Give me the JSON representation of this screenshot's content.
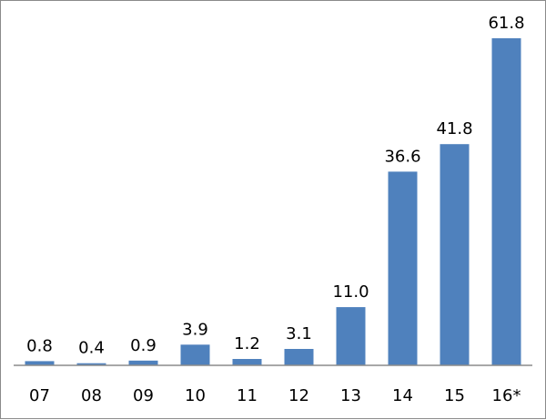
{
  "chart_data": {
    "type": "bar",
    "categories": [
      "07",
      "08",
      "09",
      "10",
      "11",
      "12",
      "13",
      "14",
      "15",
      "16*"
    ],
    "values": [
      0.8,
      0.4,
      0.9,
      3.9,
      1.2,
      3.1,
      11.0,
      36.6,
      41.8,
      61.8
    ],
    "value_labels": [
      "0.8",
      "0.4",
      "0.9",
      "3.9",
      "1.2",
      "3.1",
      "11.0",
      "36.6",
      "41.8",
      "61.8"
    ],
    "title": "",
    "xlabel": "",
    "ylabel": "",
    "ylim": [
      0,
      61.8
    ],
    "grid": false,
    "legend": "none",
    "bar_color": "#4f81bd"
  }
}
